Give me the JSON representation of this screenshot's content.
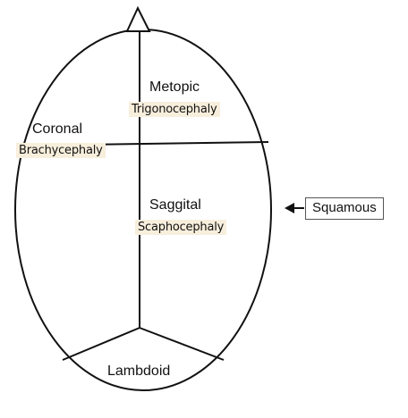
{
  "diagram": {
    "sutures": {
      "metopic": {
        "name": "Metopic",
        "condition": "Trigonocephaly"
      },
      "coronal": {
        "name": "Coronal",
        "condition": "Brachycephaly"
      },
      "sagittal": {
        "name": "Saggital",
        "condition": "Scaphocephaly"
      },
      "lambdoid": {
        "name": "Lambdoid"
      },
      "squamous": {
        "name": "Squamous"
      }
    },
    "colors": {
      "outline": "#111111",
      "highlight": "#f7eedc"
    },
    "icons": {
      "squamous_pointer": "left-arrow-icon",
      "nose_marker": "triangle-icon"
    }
  }
}
